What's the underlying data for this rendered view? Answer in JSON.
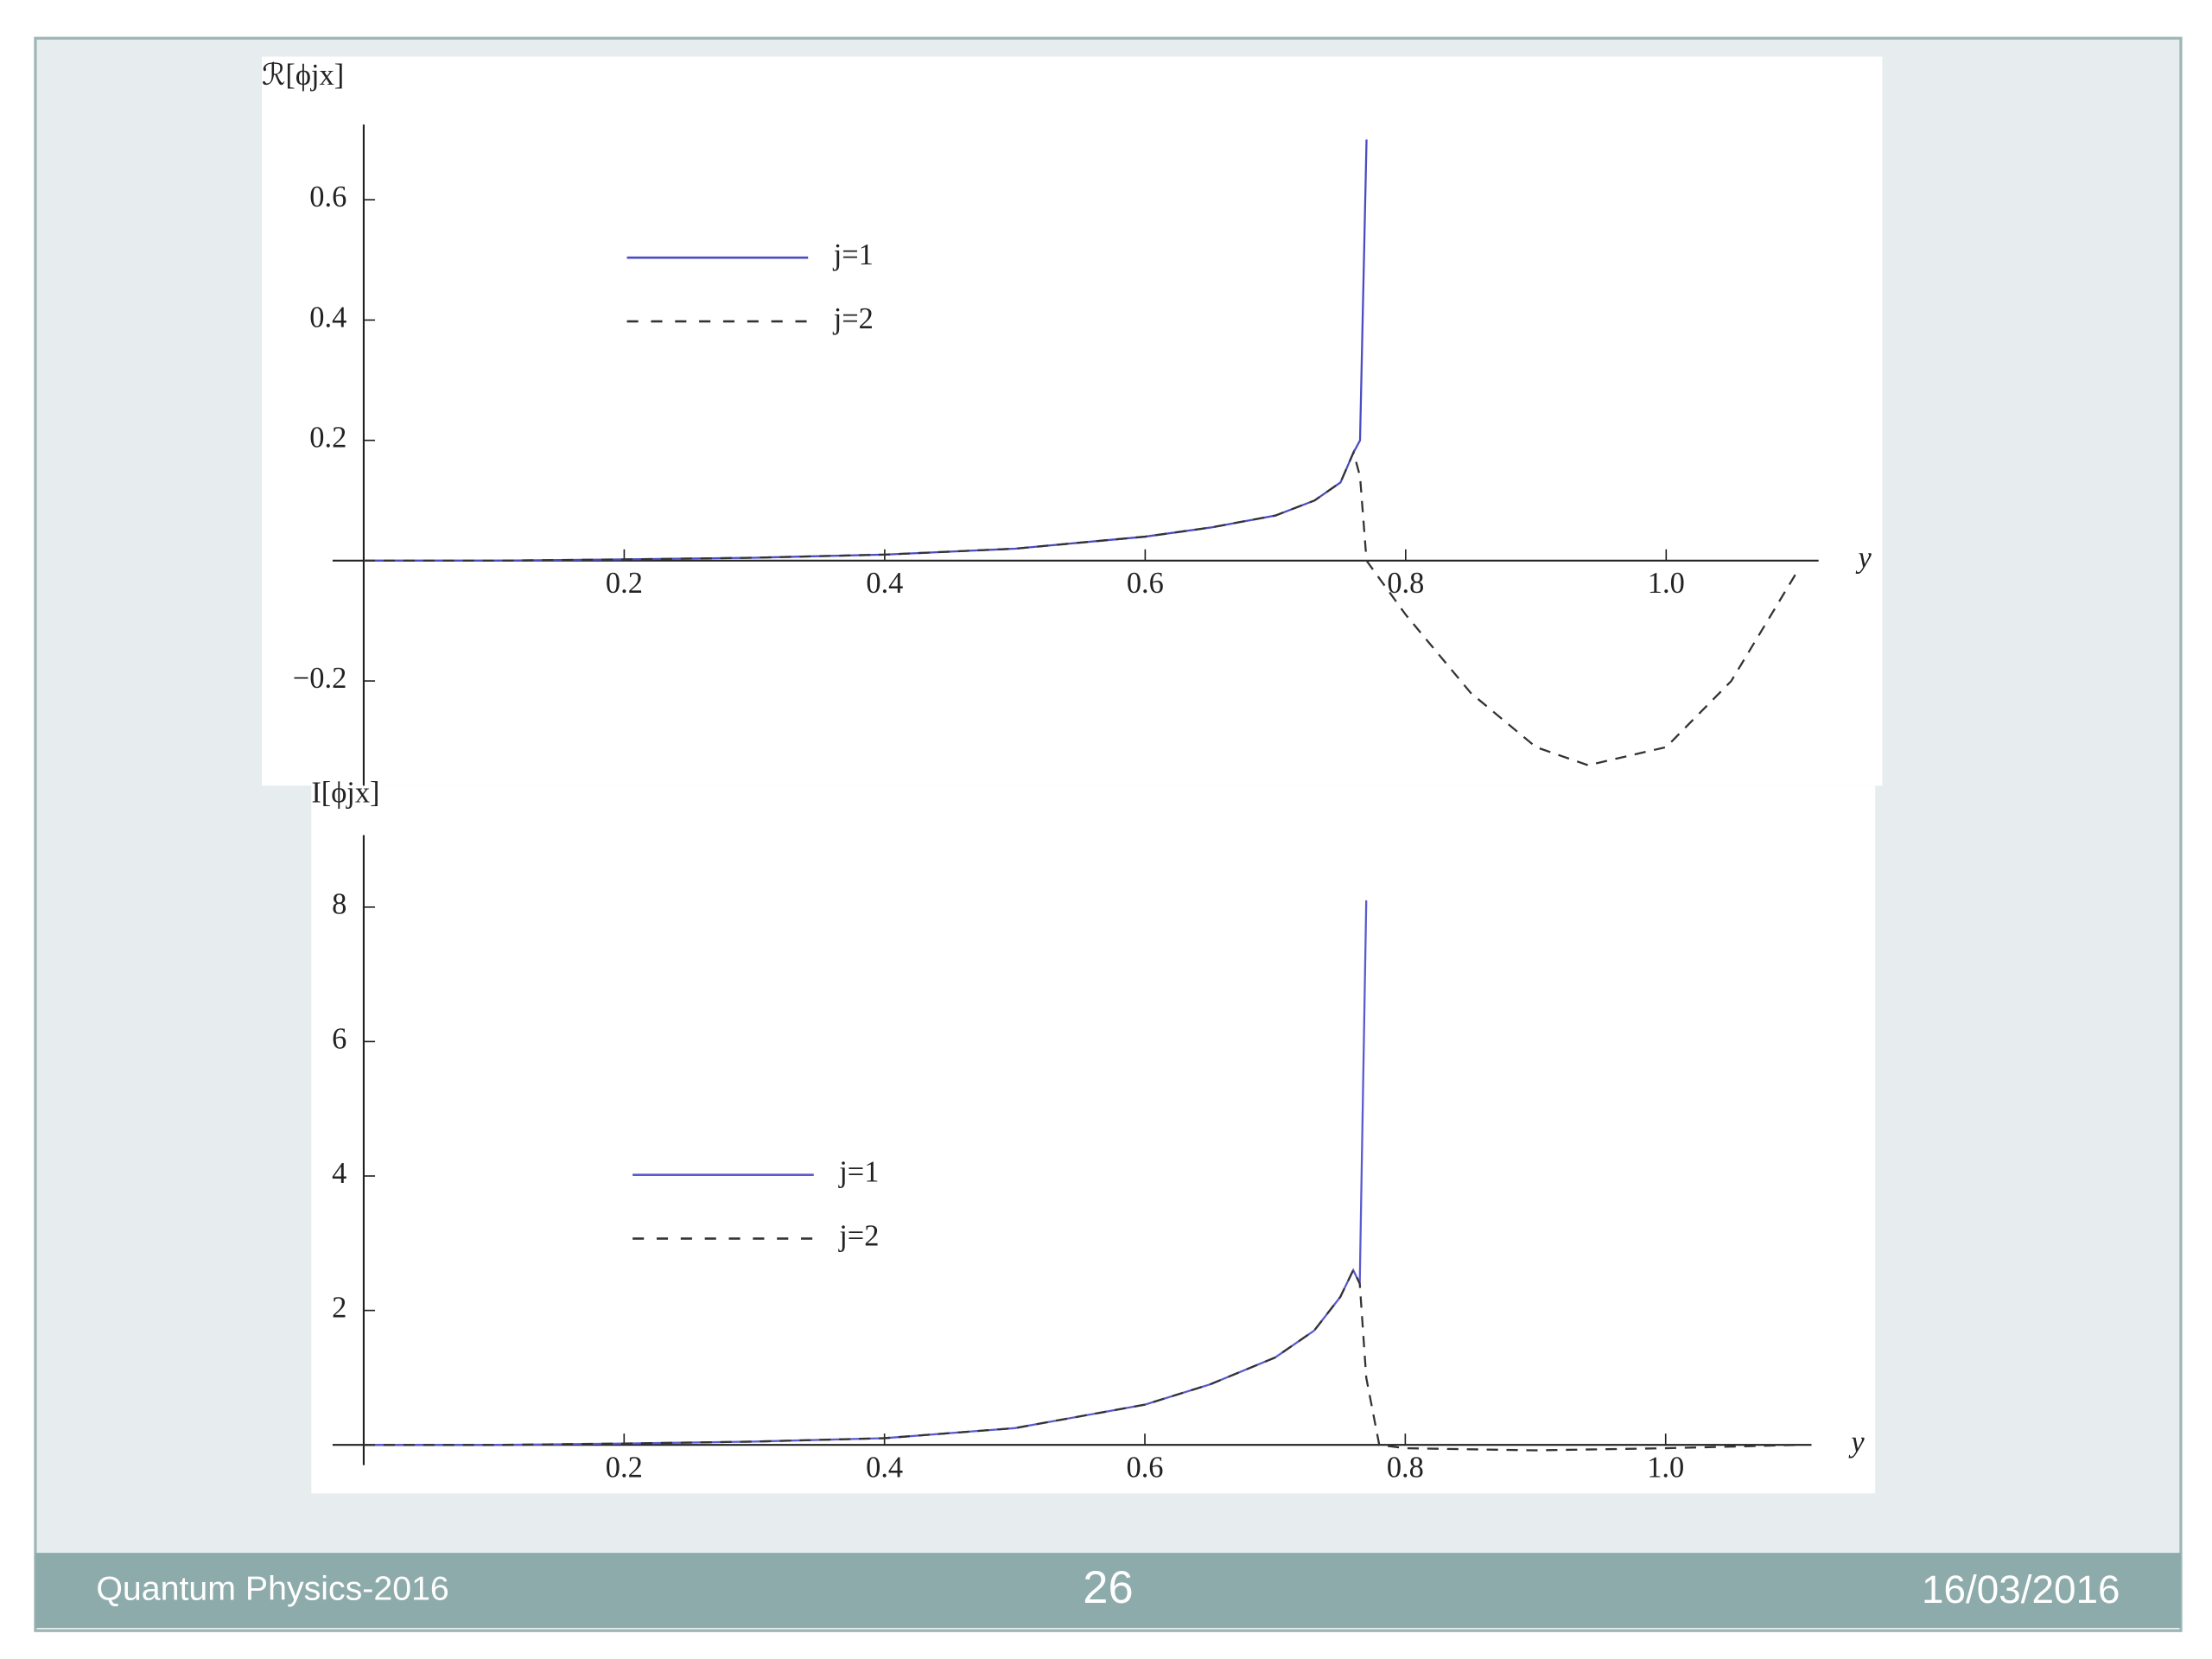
{
  "chart_data": [
    {
      "type": "line",
      "y_label": "ℛ[ϕjx]",
      "x_label": "y",
      "x": [
        0,
        0.1,
        0.2,
        0.3,
        0.4,
        0.5,
        0.6,
        0.65,
        0.7,
        0.73,
        0.75,
        0.76,
        0.765,
        0.77,
        0.8,
        0.85,
        0.9,
        0.94,
        1.0,
        1.05,
        1.1
      ],
      "series": [
        {
          "name": "j=1",
          "color": "#4b4bc4",
          "dashed": false,
          "values": [
            0,
            0,
            0.002,
            0.005,
            0.01,
            0.02,
            0.04,
            0.055,
            0.075,
            0.1,
            0.13,
            0.18,
            0.2,
            0.7,
            null,
            null,
            null,
            null,
            null,
            null,
            null
          ]
        },
        {
          "name": "j=2",
          "color": "#333333",
          "dashed": true,
          "values": [
            0,
            0,
            0.002,
            0.005,
            0.01,
            0.02,
            0.04,
            0.055,
            0.075,
            0.1,
            0.13,
            0.18,
            0.14,
            0,
            -0.09,
            -0.22,
            -0.31,
            -0.34,
            -0.31,
            -0.2,
            -0.02
          ]
        }
      ],
      "xlim": [
        0,
        1.117
      ],
      "ylim": [
        -0.374,
        0.725
      ],
      "xticks": [
        0.2,
        0.4,
        0.6,
        0.8,
        {
          "value": 1,
          "label": "1.0"
        }
      ],
      "yticks": [
        {
          "value": -0.2,
          "label": "−0.2"
        },
        0.2,
        0.4,
        0.6
      ],
      "legend": "upper left"
    },
    {
      "type": "line",
      "y_label": "I[ϕjx]",
      "x_label": "y",
      "x": [
        0,
        0.1,
        0.2,
        0.3,
        0.4,
        0.5,
        0.6,
        0.65,
        0.7,
        0.73,
        0.75,
        0.76,
        0.765,
        0.77,
        0.78,
        0.8,
        0.9,
        1.0,
        1.1
      ],
      "series": [
        {
          "name": "j=1",
          "color": "#5a5ad0",
          "dashed": false,
          "values": [
            0,
            0,
            0.02,
            0.05,
            0.1,
            0.25,
            0.6,
            0.9,
            1.3,
            1.7,
            2.2,
            2.6,
            2.4,
            8.1,
            null,
            null,
            null,
            null,
            null
          ]
        },
        {
          "name": "j=2",
          "color": "#333333",
          "dashed": true,
          "values": [
            0,
            0,
            0.02,
            0.05,
            0.1,
            0.25,
            0.6,
            0.9,
            1.3,
            1.7,
            2.2,
            2.6,
            2.4,
            1.0,
            0,
            -0.05,
            -0.08,
            -0.05,
            0
          ]
        }
      ],
      "xlim": [
        0,
        1.112
      ],
      "ylim": [
        -0.3,
        9.07
      ],
      "xticks": [
        0.2,
        0.4,
        0.6,
        0.8,
        {
          "value": 1,
          "label": "1.0"
        }
      ],
      "yticks": [
        2,
        4,
        6,
        8
      ],
      "legend": "center left"
    }
  ],
  "footer": {
    "left": "Quantum Physics-2016",
    "page": "26",
    "date": "16/03/2016"
  }
}
